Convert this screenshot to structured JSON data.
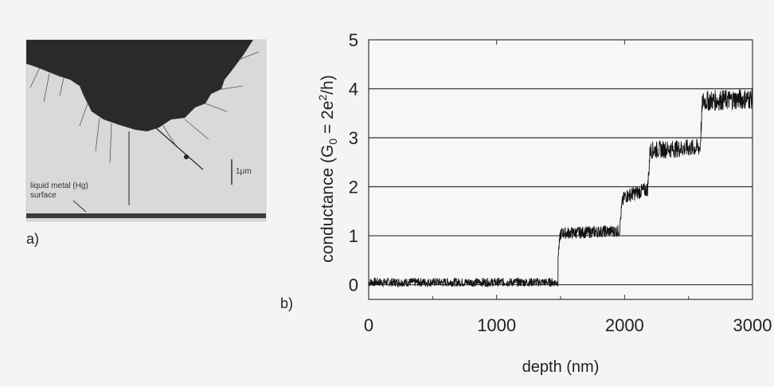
{
  "panel_a": {
    "label": "a)",
    "scale_bar_label": "1μm",
    "surface_label_line1": "liquid metal (Hg)",
    "surface_label_line2": "surface"
  },
  "chart_data": {
    "type": "line",
    "panel_label": "b)",
    "title": "",
    "xlabel": "depth (nm)",
    "ylabel_main": "conductance (G",
    "ylabel_sub": "0",
    "ylabel_mid": " = 2e",
    "ylabel_sup": "2",
    "ylabel_end": "/h)",
    "xlim": [
      0,
      3000
    ],
    "ylim": [
      -0.3,
      5
    ],
    "xticks": [
      0,
      1000,
      2000,
      3000
    ],
    "yticks": [
      0,
      1,
      2,
      3,
      4,
      5
    ],
    "grid": "horizontal",
    "colors": {
      "trace": "#111111",
      "grid": "#333333"
    },
    "series": [
      {
        "x": [
          0,
          1480,
          1480,
          1500,
          1960,
          1980,
          2000,
          2180,
          2200,
          2590,
          2610,
          3000
        ],
        "y": [
          0.05,
          0.05,
          0.6,
          1.05,
          1.1,
          1.65,
          1.8,
          1.95,
          2.75,
          2.8,
          3.75,
          3.8
        ]
      }
    ]
  }
}
